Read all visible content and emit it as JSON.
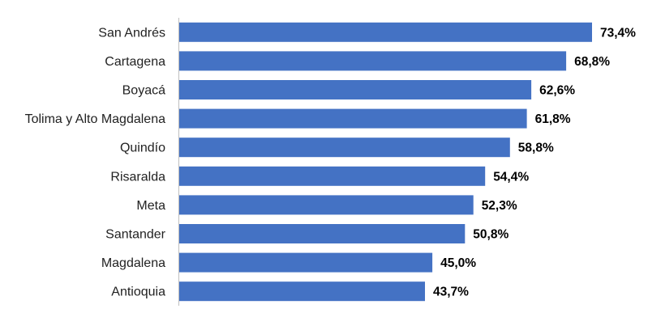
{
  "chart_data": {
    "type": "bar",
    "orientation": "horizontal",
    "title": "",
    "xlabel": "",
    "ylabel": "",
    "categories": [
      "San Andrés",
      "Cartagena",
      "Boyacá",
      "Tolima y Alto Magdalena",
      "Quindío",
      "Risaralda",
      "Meta",
      "Santander",
      "Magdalena",
      "Antioquia"
    ],
    "values": [
      73.4,
      68.8,
      62.6,
      61.8,
      58.8,
      54.4,
      52.3,
      50.8,
      45.0,
      43.7
    ],
    "value_labels": [
      "73,4%",
      "68,8%",
      "62,6%",
      "61,8%",
      "58,8%",
      "54,4%",
      "52,3%",
      "50,8%",
      "45,0%",
      "43,7%"
    ],
    "xlim": [
      0,
      73.4
    ],
    "grid": false,
    "legend": "none",
    "bar_color": "#4472C4",
    "axis_color": "#BFBFBF"
  }
}
